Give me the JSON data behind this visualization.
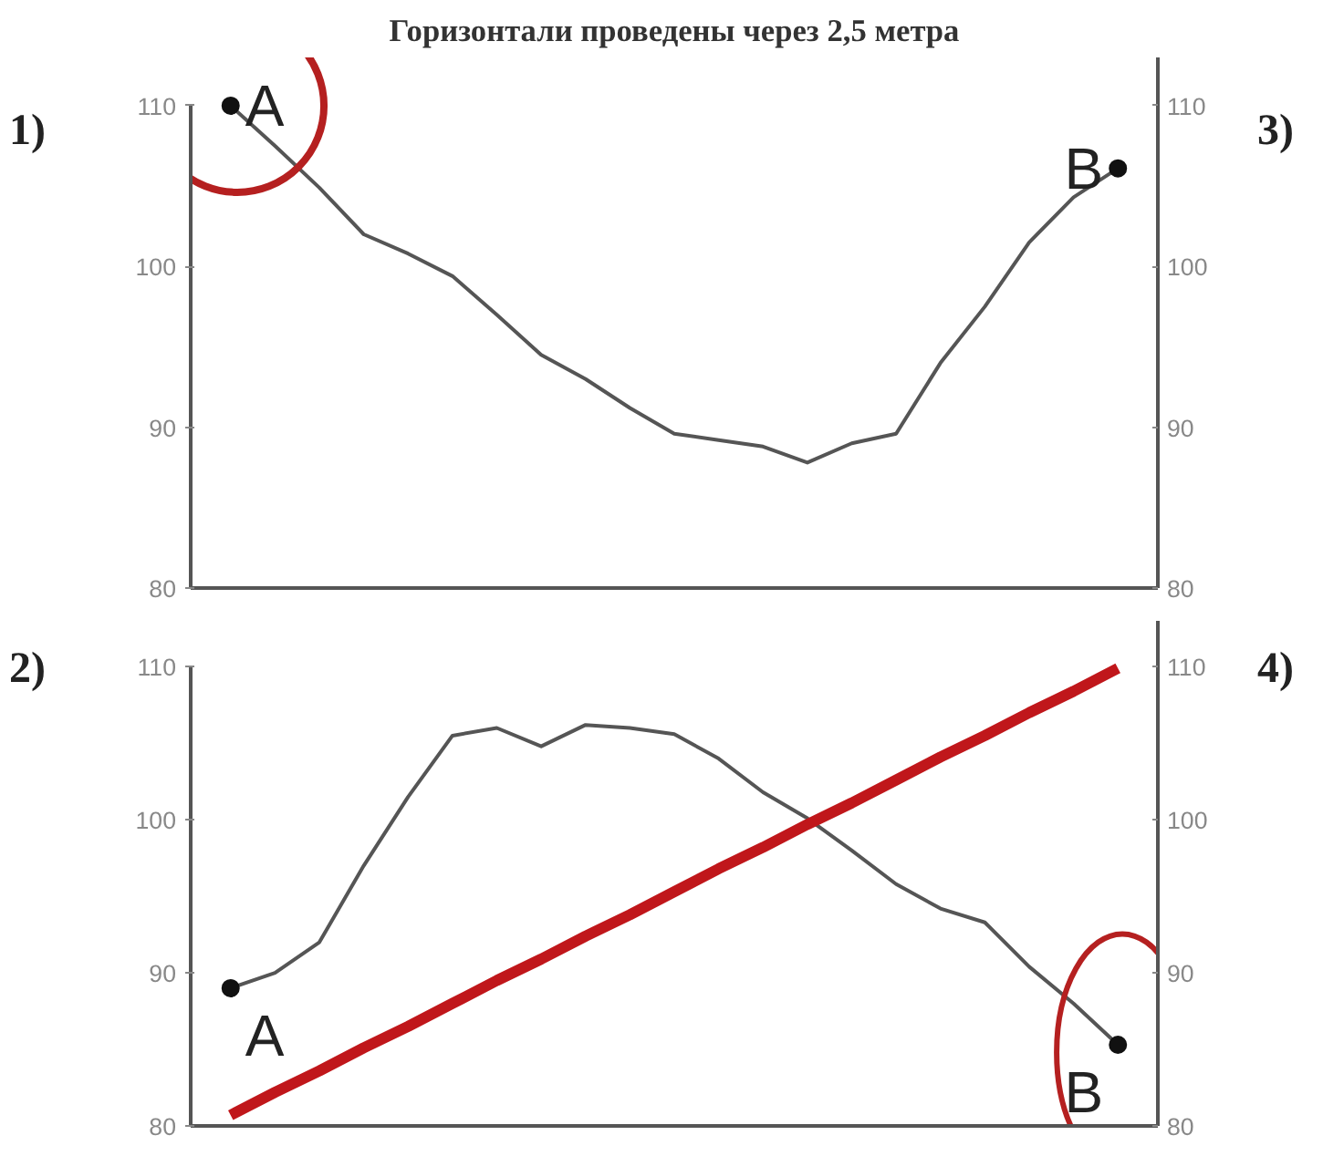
{
  "chart_data": [
    {
      "type": "line",
      "title": "Горизонтали проведены через 2,5 метра",
      "categories": [
        null,
        null,
        null,
        null,
        null,
        null,
        null,
        null,
        null,
        null,
        null,
        null,
        null,
        null,
        null,
        null,
        null,
        null,
        null,
        null,
        null
      ],
      "series": [
        {
          "color": "#555555",
          "values": [
            110,
            107.5,
            104.9,
            102.0,
            100.8,
            99.4,
            97.0,
            94.5,
            93.0,
            91.2,
            89.6,
            89.2,
            88.8,
            87.8,
            89.0,
            89.6,
            94.0,
            97.5,
            101.5,
            104.3,
            106.1
          ]
        },
        {
          "type": "scatter",
          "color": "#111111",
          "values": [
            110,
            null,
            null,
            null,
            null,
            null,
            null,
            null,
            null,
            null,
            null,
            null,
            null,
            null,
            null,
            null,
            null,
            null,
            null,
            null,
            106.1
          ]
        }
      ],
      "ylim": [
        80,
        113
      ],
      "yticks": [
        80,
        90,
        100,
        110
      ],
      "y2lim": [
        80,
        113
      ],
      "y2ticks": [
        80,
        90,
        100,
        110
      ],
      "grid": false,
      "annotations": [
        "1)",
        "3)",
        "A",
        "B"
      ]
    },
    {
      "type": "line",
      "categories": [
        null,
        null,
        null,
        null,
        null,
        null,
        null,
        null,
        null,
        null,
        null,
        null,
        null,
        null,
        null,
        null,
        null,
        null,
        null,
        null,
        null
      ],
      "series": [
        {
          "color": "#555555",
          "values": [
            89.0,
            90.0,
            92.0,
            97.0,
            101.5,
            105.5,
            106.0,
            104.8,
            106.2,
            106.0,
            105.6,
            104.0,
            101.8,
            100.1,
            98.0,
            95.8,
            94.2,
            93.3,
            90.4,
            88.0,
            85.3
          ]
        },
        {
          "color": "#c0171b",
          "values": [
            80.7,
            82.2,
            83.6,
            85.1,
            86.5,
            88.0,
            89.5,
            90.9,
            92.4,
            93.8,
            95.3,
            96.8,
            98.2,
            99.7,
            101.1,
            102.6,
            104.1,
            105.5,
            107.0,
            108.4,
            109.9
          ]
        },
        {
          "type": "scatter",
          "color": "#111111",
          "values": [
            89.0,
            null,
            null,
            null,
            null,
            null,
            null,
            null,
            null,
            null,
            null,
            null,
            null,
            null,
            null,
            null,
            null,
            null,
            null,
            null,
            85.3
          ]
        }
      ],
      "ylim": [
        80,
        113
      ],
      "yticks": [
        80,
        90,
        100,
        110
      ],
      "y2lim": [
        80,
        113
      ],
      "y2ticks": [
        80,
        90,
        100,
        110
      ],
      "grid": false,
      "annotations": [
        "2)",
        "4)",
        "A",
        "B"
      ]
    }
  ]
}
